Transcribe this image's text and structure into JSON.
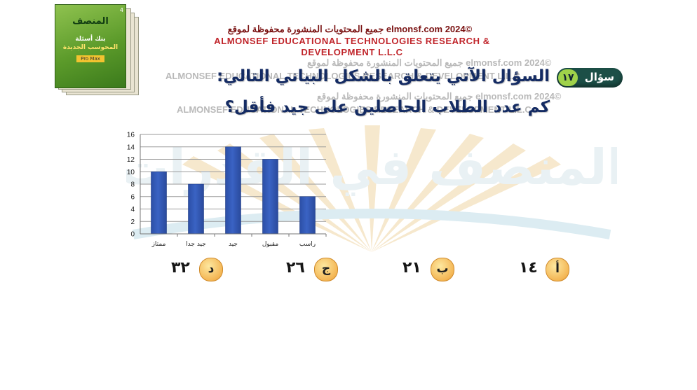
{
  "header": {
    "copyright_ar": "جميع المحتويات المنشورة محفوظة لموقع elmonsf.com  2024©",
    "company": "ALMONSEF EDUCATIONAL TECHNOLOGIES RESEARCH & DEVELOPMENT L.L.C"
  },
  "watermark": {
    "line_ar": "جميع المحتويات المنشورة محفوظة لموقع elmonsf.com  2024©",
    "line_en": "ALMONSEF EDUCATIONAL TECHNOLOGIES RESEARCH & DEVELOPMENT L.L.C"
  },
  "book": {
    "brand": "المنصف",
    "subtitle": "في القدرات",
    "title1": "بنك أسئلة",
    "title2": "المحوسب الجديدة",
    "tag": "Pro Max"
  },
  "question": {
    "label": "سؤال",
    "number": "١٧",
    "line1": "السؤال الآتي يتعلق بالشكل البياني التالي:",
    "line2": "كم عدد الطلاب الحاصلين على جيد فأقل؟"
  },
  "answers": [
    {
      "letter": "أ",
      "value": "١٤"
    },
    {
      "letter": "ب",
      "value": "٢١"
    },
    {
      "letter": "ج",
      "value": "٢٦"
    },
    {
      "letter": "د",
      "value": "٣٢"
    }
  ],
  "colors": {
    "bar": "#3a63c4",
    "pill": "#1c4f47",
    "question_text": "#142b63",
    "answer_circle": "#f4b756"
  },
  "chart_data": {
    "type": "bar",
    "categories": [
      "ممتاز",
      "جيد جدا",
      "جيد",
      "مقبول",
      "راسب"
    ],
    "values": [
      10,
      8,
      14,
      12,
      6
    ],
    "ylim": [
      0,
      16
    ],
    "yticks": [
      0,
      2,
      4,
      6,
      8,
      10,
      12,
      14,
      16
    ],
    "grid": true,
    "legend": "none"
  }
}
